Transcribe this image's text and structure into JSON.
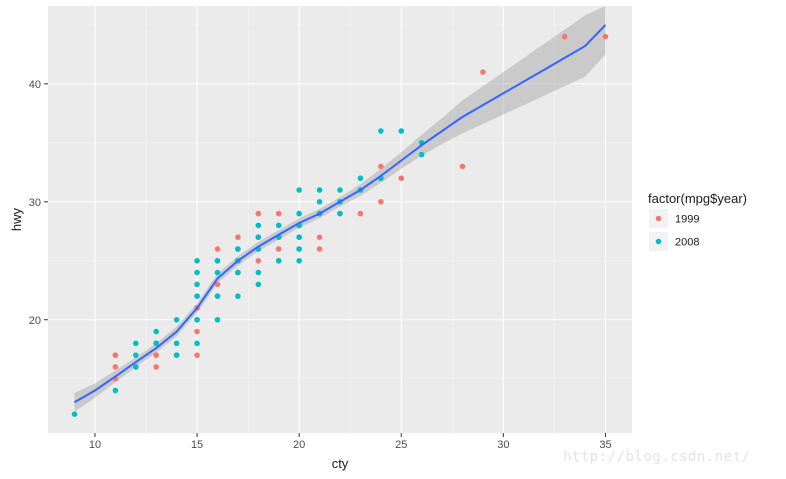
{
  "chart_data": {
    "type": "scatter",
    "title": "",
    "xlabel": "cty",
    "ylabel": "hwy",
    "xlim": [
      7.7,
      36.3
    ],
    "ylim": [
      10.4,
      46.6
    ],
    "x_ticks": [
      10,
      15,
      20,
      25,
      30,
      35
    ],
    "y_ticks": [
      20,
      30,
      40
    ],
    "grid": true,
    "legend": {
      "title": "factor(mpg$year)",
      "placement": "right"
    },
    "colors": {
      "panel": "#ebebeb",
      "grid_major": "#ffffff",
      "smooth_line": "#3366ff",
      "smooth_ribbon": "#999999"
    },
    "series": [
      {
        "name": "1999",
        "color": "#f8766d",
        "points": [
          [
            11,
            17
          ],
          [
            11,
            16
          ],
          [
            11,
            15
          ],
          [
            12,
            16
          ],
          [
            13,
            17
          ],
          [
            13,
            16
          ],
          [
            13,
            18
          ],
          [
            14,
            17
          ],
          [
            15,
            17
          ],
          [
            15,
            19
          ],
          [
            15,
            20
          ],
          [
            15,
            21
          ],
          [
            15,
            22
          ],
          [
            16,
            22
          ],
          [
            16,
            23
          ],
          [
            16,
            25
          ],
          [
            16,
            26
          ],
          [
            17,
            24
          ],
          [
            17,
            25
          ],
          [
            17,
            26
          ],
          [
            17,
            27
          ],
          [
            18,
            25
          ],
          [
            18,
            26
          ],
          [
            18,
            27
          ],
          [
            18,
            29
          ],
          [
            19,
            25
          ],
          [
            19,
            26
          ],
          [
            19,
            27
          ],
          [
            19,
            29
          ],
          [
            20,
            26
          ],
          [
            20,
            27
          ],
          [
            20,
            28
          ],
          [
            21,
            26
          ],
          [
            21,
            27
          ],
          [
            21,
            29
          ],
          [
            22,
            29
          ],
          [
            23,
            29
          ],
          [
            24,
            30
          ],
          [
            24,
            32
          ],
          [
            24,
            33
          ],
          [
            25,
            32
          ],
          [
            28,
            33
          ],
          [
            29,
            41
          ],
          [
            33,
            44
          ],
          [
            35,
            44
          ]
        ]
      },
      {
        "name": "2008",
        "color": "#00bfc4",
        "points": [
          [
            9,
            12
          ],
          [
            11,
            14
          ],
          [
            12,
            16
          ],
          [
            12,
            17
          ],
          [
            12,
            18
          ],
          [
            13,
            18
          ],
          [
            13,
            19
          ],
          [
            14,
            17
          ],
          [
            14,
            18
          ],
          [
            14,
            20
          ],
          [
            15,
            18
          ],
          [
            15,
            20
          ],
          [
            15,
            22
          ],
          [
            15,
            23
          ],
          [
            15,
            24
          ],
          [
            15,
            25
          ],
          [
            16,
            20
          ],
          [
            16,
            22
          ],
          [
            16,
            24
          ],
          [
            16,
            25
          ],
          [
            17,
            22
          ],
          [
            17,
            24
          ],
          [
            17,
            25
          ],
          [
            17,
            26
          ],
          [
            18,
            23
          ],
          [
            18,
            24
          ],
          [
            18,
            26
          ],
          [
            18,
            27
          ],
          [
            18,
            28
          ],
          [
            19,
            25
          ],
          [
            19,
            27
          ],
          [
            19,
            28
          ],
          [
            20,
            25
          ],
          [
            20,
            26
          ],
          [
            20,
            27
          ],
          [
            20,
            28
          ],
          [
            20,
            29
          ],
          [
            20,
            31
          ],
          [
            21,
            29
          ],
          [
            21,
            30
          ],
          [
            21,
            31
          ],
          [
            22,
            29
          ],
          [
            22,
            30
          ],
          [
            22,
            31
          ],
          [
            23,
            31
          ],
          [
            23,
            32
          ],
          [
            24,
            32
          ],
          [
            24,
            36
          ],
          [
            25,
            36
          ],
          [
            26,
            34
          ],
          [
            26,
            35
          ]
        ]
      }
    ],
    "smooth": {
      "method": "loess",
      "fit": [
        [
          9,
          13.0
        ],
        [
          10,
          14.0
        ],
        [
          11,
          15.2
        ],
        [
          12,
          16.4
        ],
        [
          13,
          17.6
        ],
        [
          14,
          19.0
        ],
        [
          15,
          21.0
        ],
        [
          16,
          23.5
        ],
        [
          17,
          25.0
        ],
        [
          18,
          26.2
        ],
        [
          19,
          27.2
        ],
        [
          20,
          28.2
        ],
        [
          21,
          29.0
        ],
        [
          22,
          30.0
        ],
        [
          23,
          31.0
        ],
        [
          24,
          32.2
        ],
        [
          25,
          33.5
        ],
        [
          26,
          34.8
        ],
        [
          27,
          36.0
        ],
        [
          28,
          37.2
        ],
        [
          29,
          38.2
        ],
        [
          30,
          39.2
        ],
        [
          31,
          40.2
        ],
        [
          32,
          41.2
        ],
        [
          33,
          42.2
        ],
        [
          34,
          43.2
        ],
        [
          35,
          45.0
        ]
      ],
      "ribbon": [
        [
          9,
          12.2,
          13.8
        ],
        [
          10,
          13.4,
          14.6
        ],
        [
          11,
          14.7,
          15.7
        ],
        [
          12,
          16.0,
          16.8
        ],
        [
          13,
          17.2,
          18.0
        ],
        [
          14,
          18.6,
          19.4
        ],
        [
          15,
          20.6,
          21.4
        ],
        [
          16,
          23.1,
          23.9
        ],
        [
          17,
          24.6,
          25.4
        ],
        [
          18,
          25.8,
          26.6
        ],
        [
          19,
          26.8,
          27.6
        ],
        [
          20,
          27.8,
          28.6
        ],
        [
          21,
          28.6,
          29.4
        ],
        [
          22,
          29.6,
          30.4
        ],
        [
          23,
          30.5,
          31.5
        ],
        [
          24,
          31.6,
          32.8
        ],
        [
          25,
          32.8,
          34.2
        ],
        [
          26,
          33.9,
          35.7
        ],
        [
          27,
          34.9,
          37.1
        ],
        [
          28,
          35.8,
          38.6
        ],
        [
          29,
          36.6,
          39.8
        ],
        [
          30,
          37.4,
          41.0
        ],
        [
          31,
          38.2,
          42.2
        ],
        [
          32,
          39.0,
          43.4
        ],
        [
          33,
          39.8,
          44.6
        ],
        [
          34,
          40.6,
          45.8
        ],
        [
          35,
          42.5,
          47.5
        ]
      ]
    }
  },
  "watermark": "http://blog.csdn.net/"
}
